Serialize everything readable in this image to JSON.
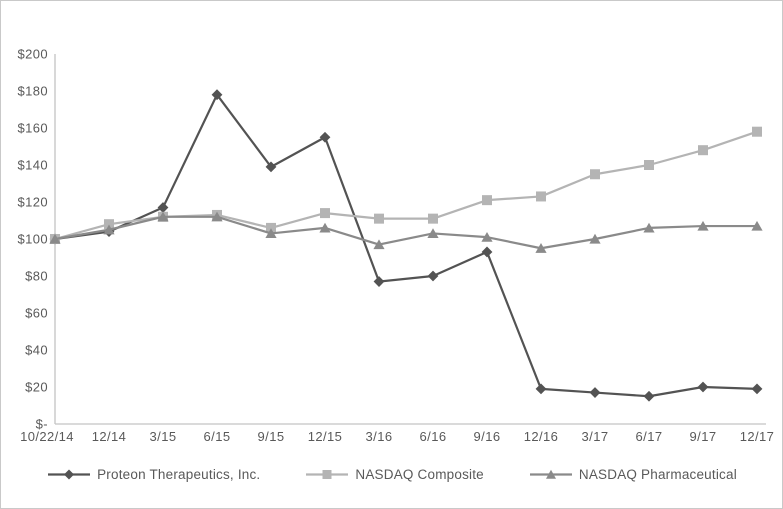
{
  "window": {
    "background": "#ffffff",
    "border_color": "#c9c9c9"
  },
  "chart_data": {
    "type": "line",
    "title": "",
    "xlabel": "",
    "ylabel": "",
    "grid": false,
    "legend_position": "bottom",
    "axis_color": "#c4c4c4",
    "text_color": "#595959",
    "plot_background": "#ffffff",
    "categories": [
      "10/22/14",
      "12/14",
      "3/15",
      "6/15",
      "9/15",
      "12/15",
      "3/16",
      "6/16",
      "9/16",
      "12/16",
      "3/17",
      "6/17",
      "9/17",
      "12/17"
    ],
    "y_axis": {
      "min": 0,
      "max": 200,
      "step": 20,
      "tick_labels_top_to_bottom": [
        "$200",
        "$180",
        "$160",
        "$140",
        "$120",
        "$100",
        "$80",
        "$60",
        "$40",
        "$20",
        "$-"
      ]
    },
    "series": [
      {
        "name": "Proteon Therapeutics, Inc.",
        "marker": "diamond",
        "color": "#535353",
        "values": [
          100,
          104,
          117,
          178,
          139,
          155,
          77,
          80,
          93,
          19,
          17,
          15,
          20,
          19
        ]
      },
      {
        "name": "NASDAQ Composite",
        "marker": "square",
        "color": "#b4b4b4",
        "values": [
          100,
          108,
          112,
          113,
          106,
          114,
          111,
          111,
          121,
          123,
          135,
          140,
          148,
          158
        ]
      },
      {
        "name": "NASDAQ Pharmaceutical",
        "marker": "triangle",
        "color": "#8a8a8a",
        "values": [
          100,
          105,
          112,
          112,
          103,
          106,
          97,
          103,
          101,
          95,
          100,
          106,
          107,
          107
        ]
      }
    ]
  }
}
